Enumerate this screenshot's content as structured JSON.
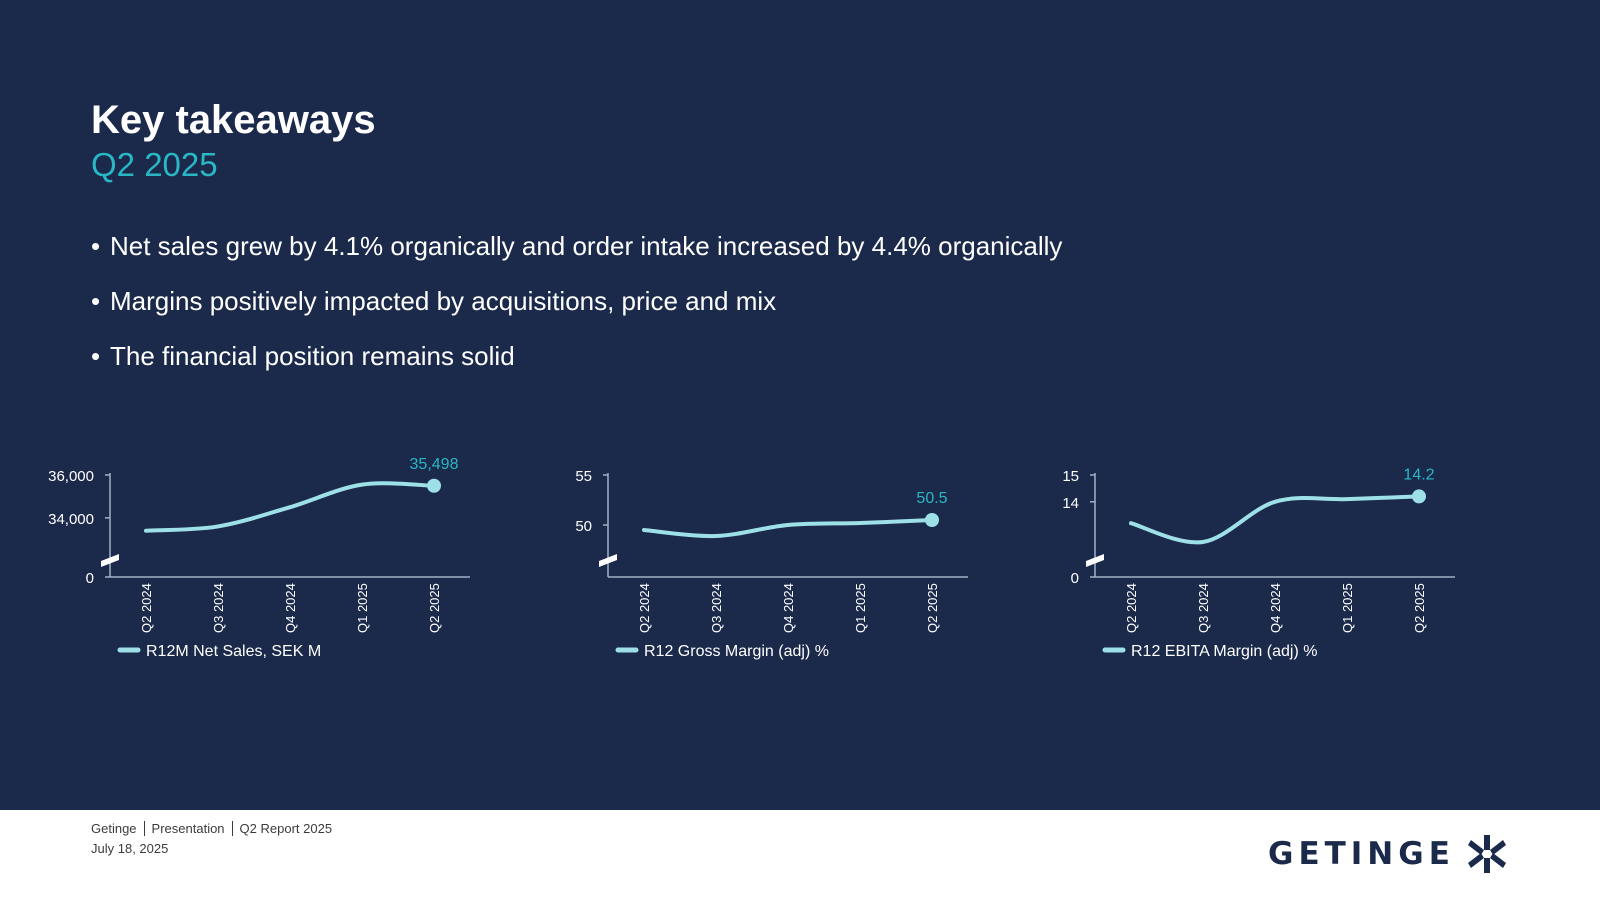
{
  "slide": {
    "title": "Key takeaways",
    "subtitle": "Q2 2025",
    "bullets": [
      "Net sales grew by 4.1% organically and order intake increased by 4.4% organically",
      "Margins positively impacted by acquisitions, price and mix",
      "The financial position remains solid"
    ]
  },
  "footer": {
    "company": "Getinge",
    "doc": "Presentation",
    "report": "Q2 Report 2025",
    "date": "July 18, 2025",
    "logo_text": "GETINGE",
    "logo_icon": "getinge-star-icon"
  },
  "colors": {
    "background": "#1b294b",
    "accent": "#2ab7c5",
    "line": "#9ee0e8",
    "text": "#ffffff"
  },
  "chart_data": [
    {
      "type": "line",
      "categories": [
        "Q2 2024",
        "Q3 2024",
        "Q4 2024",
        "Q1 2025",
        "Q2 2025"
      ],
      "series": [
        {
          "name": "R12M Net Sales, SEK M",
          "values": [
            33400,
            33600,
            34500,
            35550,
            35498
          ]
        }
      ],
      "yticks": [
        0,
        34000,
        36000
      ],
      "ytick_labels": [
        "0",
        "34,000",
        "36,000"
      ],
      "axis_break": true,
      "ylim": [
        32500,
        36000
      ],
      "end_label": "35,498",
      "legend": "bottom-left"
    },
    {
      "type": "line",
      "categories": [
        "Q2 2024",
        "Q3 2024",
        "Q4 2024",
        "Q1 2025",
        "Q2 2025"
      ],
      "series": [
        {
          "name": "R12 Gross Margin (adj) %",
          "values": [
            49.5,
            48.9,
            50.0,
            50.2,
            50.5
          ]
        }
      ],
      "yticks": [
        50,
        55
      ],
      "ytick_labels": [
        "50",
        "55"
      ],
      "axis_break": true,
      "ylim": [
        47.5,
        55
      ],
      "end_label": "50.5",
      "legend": "bottom-left"
    },
    {
      "type": "line",
      "categories": [
        "Q2 2024",
        "Q3 2024",
        "Q4 2024",
        "Q1 2025",
        "Q2 2025"
      ],
      "series": [
        {
          "name": "R12 EBITA Margin (adj) %",
          "values": [
            13.2,
            12.5,
            14.0,
            14.1,
            14.2
          ]
        }
      ],
      "yticks": [
        0,
        14,
        15
      ],
      "ytick_labels": [
        "0",
        "14",
        "15"
      ],
      "axis_break": true,
      "ylim": [
        12.2,
        15
      ],
      "end_label": "14.2",
      "legend": "bottom-left"
    }
  ]
}
